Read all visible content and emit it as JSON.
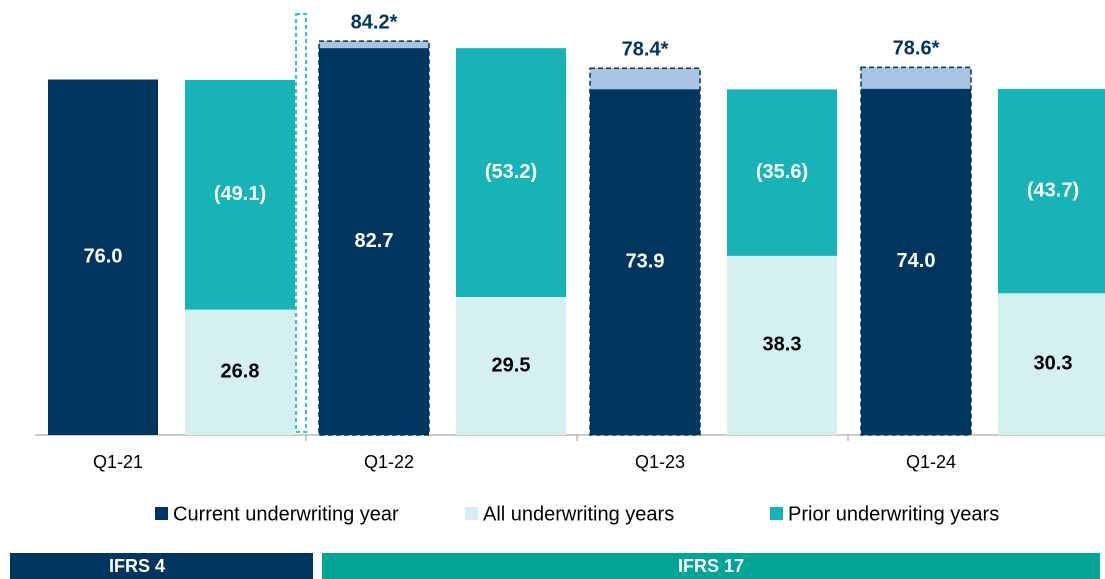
{
  "chart_data": {
    "type": "bar",
    "categories": [
      "Q1-21",
      "Q1-22",
      "Q1-23",
      "Q1-24"
    ],
    "series": [
      {
        "name": "Current underwriting year",
        "color": "#00365e",
        "values": [
          76.0,
          82.7,
          73.9,
          74.0
        ],
        "value_labels": [
          "76.0",
          "82.7",
          "73.9",
          "74.0"
        ]
      },
      {
        "name": "All underwriting years",
        "color": "#d5f0f0",
        "values": [
          26.8,
          29.5,
          38.3,
          30.3
        ],
        "value_labels": [
          "26.8",
          "29.5",
          "38.3",
          "30.3"
        ]
      },
      {
        "name": "Prior underwriting years",
        "color": "#17b3b7",
        "values": [
          -49.1,
          -53.2,
          -35.6,
          -43.7
        ],
        "value_labels": [
          "(49.1)",
          "(53.2)",
          "(35.6)",
          "(43.7)"
        ]
      }
    ],
    "adjusted": {
      "color": "#a9c3e2",
      "values": [
        null,
        84.2,
        78.4,
        78.6
      ],
      "value_labels": [
        null,
        "84.2*",
        "78.4*",
        "78.6*"
      ]
    },
    "ylim": [
      0,
      93
    ],
    "regimes": [
      {
        "label": "IFRS 4",
        "color": "#00365e"
      },
      {
        "label": "IFRS 17",
        "color": "#00a597"
      }
    ]
  }
}
